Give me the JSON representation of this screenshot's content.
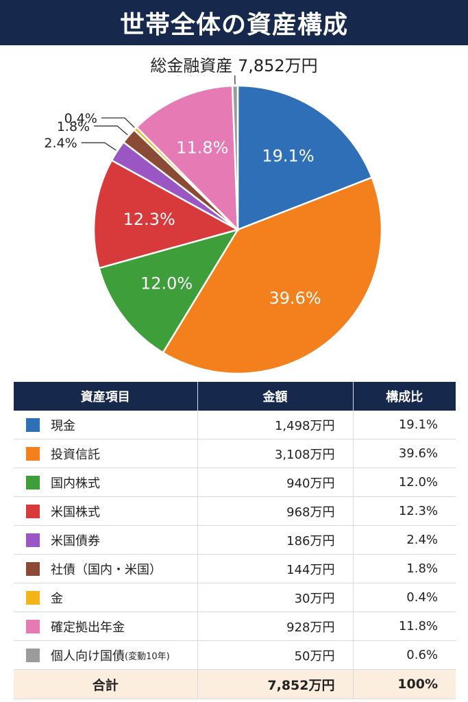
{
  "header": {
    "title": "世帯全体の資産構成"
  },
  "subtitle": "総金融資産 7,852万円",
  "chart_data": {
    "type": "pie",
    "title": "世帯全体の資産構成",
    "subtitle": "総金融資産 7,852万円",
    "slices": [
      {
        "name": "現金",
        "value": 19.1,
        "label": "19.1%",
        "color": "#2e6fb7"
      },
      {
        "name": "投資信託",
        "value": 39.6,
        "label": "39.6%",
        "color": "#f47f1d"
      },
      {
        "name": "国内株式",
        "value": 12.0,
        "label": "12.0%",
        "color": "#3e9e3a"
      },
      {
        "name": "米国株式",
        "value": 12.3,
        "label": "12.3%",
        "color": "#d8393a"
      },
      {
        "name": "米国債券",
        "value": 2.4,
        "label": "2.4%",
        "color": "#9a56c2"
      },
      {
        "name": "社債（国内・米国）",
        "value": 1.8,
        "label": "1.8%",
        "color": "#8b4a33"
      },
      {
        "name": "金",
        "value": 0.4,
        "label": "0.4%",
        "color": "#f2b418"
      },
      {
        "name": "確定拠出年金",
        "value": 11.8,
        "label": "11.8%",
        "color": "#e67ab4"
      },
      {
        "name": "個人向け国債（変動10年）",
        "value": 0.6,
        "label": "0.6%",
        "color": "#9b9b9b"
      }
    ]
  },
  "table": {
    "headers": [
      "資産項目",
      "金額",
      "構成比"
    ],
    "rows": [
      {
        "name": "現金",
        "amount": "1,498万円",
        "ratio": "19.1%",
        "color": "#2e6fb7"
      },
      {
        "name": "投資信託",
        "amount": "3,108万円",
        "ratio": "39.6%",
        "color": "#f47f1d"
      },
      {
        "name": "国内株式",
        "amount": "940万円",
        "ratio": "12.0%",
        "color": "#3e9e3a"
      },
      {
        "name": "米国株式",
        "amount": "968万円",
        "ratio": "12.3%",
        "color": "#d8393a"
      },
      {
        "name": "米国債券",
        "amount": "186万円",
        "ratio": "2.4%",
        "color": "#9a56c2"
      },
      {
        "name": "社債（国内・米国）",
        "amount": "144万円",
        "ratio": "1.8%",
        "color": "#8b4a33"
      },
      {
        "name": "金",
        "amount": "30万円",
        "ratio": "0.4%",
        "color": "#f2b418"
      },
      {
        "name": "確定拠出年金",
        "amount": "928万円",
        "ratio": "11.8%",
        "color": "#e67ab4"
      },
      {
        "name": "個人向け国債",
        "name_sub": "(変動10年)",
        "amount": "50万円",
        "ratio": "0.6%",
        "color": "#9b9b9b"
      }
    ],
    "total": {
      "name": "合計",
      "amount": "7,852万円",
      "ratio": "100%"
    }
  }
}
